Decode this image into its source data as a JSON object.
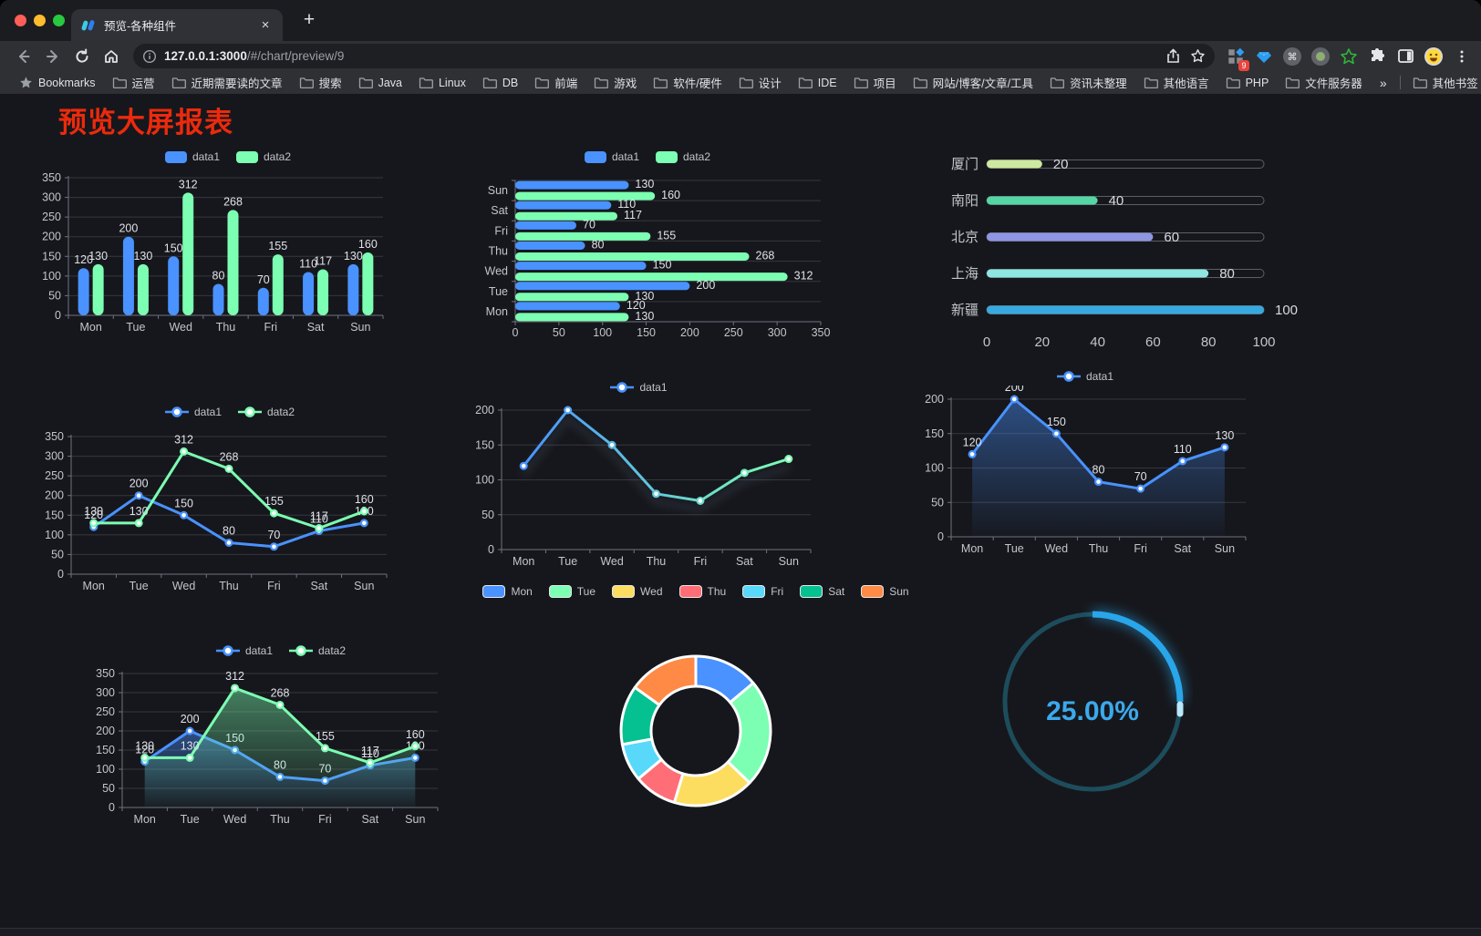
{
  "browser": {
    "tab_title": "预览-各种组件",
    "url_host": "127.0.0.1:3000",
    "url_path": "/#/chart/preview/9",
    "extension_badge": "9",
    "bookmarks_label": "Bookmarks",
    "bookmarks": [
      "运营",
      "近期需要读的文章",
      "搜索",
      "Java",
      "Linux",
      "DB",
      "前端",
      "游戏",
      "软件/硬件",
      "设计",
      "IDE",
      "项目",
      "网站/博客/文章/工具",
      "资讯未整理",
      "其他语言",
      "PHP",
      "文件服务器"
    ],
    "bookmarks_overflow": "»",
    "other_bookmarks": "其他书签"
  },
  "page": {
    "title": "预览大屏报表",
    "title_color": "#ec2a0d",
    "background": "#16171c"
  },
  "palette": {
    "data1": "#4992ff",
    "data2": "#7cffb2",
    "axis_text": "#c3c5ca",
    "value_label": "#dfe2e8",
    "grid_line": "rgba(255,255,255,0.14)",
    "axis_line": "#6f7280"
  },
  "chart_data": [
    {
      "id": "bar-grouped",
      "type": "bar",
      "categories": [
        "Mon",
        "Tue",
        "Wed",
        "Thu",
        "Fri",
        "Sat",
        "Sun"
      ],
      "series": [
        {
          "name": "data1",
          "color": "#4992ff",
          "values": [
            120,
            200,
            150,
            80,
            70,
            110,
            130
          ]
        },
        {
          "name": "data2",
          "color": "#7cffb2",
          "values": [
            130,
            130,
            312,
            268,
            155,
            117,
            160
          ]
        }
      ],
      "ylim": [
        0,
        350
      ],
      "ytick_step": 50,
      "legend_position": "top",
      "show_labels": true
    },
    {
      "id": "bar-horizontal",
      "type": "bar",
      "orientation": "horizontal",
      "categories": [
        "Mon",
        "Tue",
        "Wed",
        "Thu",
        "Fri",
        "Sat",
        "Sun"
      ],
      "categories_display_top_to_bottom": [
        "Sun",
        "Sat",
        "Fri",
        "Thu",
        "Wed",
        "Tue",
        "Mon"
      ],
      "series": [
        {
          "name": "data1",
          "color": "#4992ff",
          "values": [
            120,
            200,
            150,
            80,
            70,
            110,
            130
          ]
        },
        {
          "name": "data2",
          "color": "#7cffb2",
          "values": [
            130,
            130,
            312,
            268,
            155,
            117,
            160
          ]
        }
      ],
      "xlim": [
        0,
        350
      ],
      "xtick_step": 50,
      "legend_position": "top",
      "show_labels": true
    },
    {
      "id": "progress-list",
      "type": "bar",
      "orientation": "horizontal-progress",
      "items": [
        {
          "label": "厦门",
          "value": 20,
          "color": "#cde9a0"
        },
        {
          "label": "南阳",
          "value": 40,
          "color": "#56d6a4"
        },
        {
          "label": "北京",
          "value": 60,
          "color": "#8e96e2"
        },
        {
          "label": "上海",
          "value": 80,
          "color": "#8fe6e0"
        },
        {
          "label": "新疆",
          "value": 100,
          "color": "#38a9de"
        }
      ],
      "xlim": [
        0,
        100
      ],
      "xticks": [
        0,
        20,
        40,
        60,
        80,
        100
      ]
    },
    {
      "id": "line-two-series",
      "type": "line",
      "categories": [
        "Mon",
        "Tue",
        "Wed",
        "Thu",
        "Fri",
        "Sat",
        "Sun"
      ],
      "series": [
        {
          "name": "data1",
          "color": "#4992ff",
          "values": [
            120,
            200,
            150,
            80,
            70,
            110,
            130
          ]
        },
        {
          "name": "data2",
          "color": "#7cffb2",
          "values": [
            130,
            130,
            312,
            268,
            155,
            117,
            160
          ]
        }
      ],
      "ylim": [
        0,
        350
      ],
      "ytick_step": 50,
      "legend_position": "top",
      "show_labels": true
    },
    {
      "id": "line-gradient-shadow",
      "type": "line",
      "categories": [
        "Mon",
        "Tue",
        "Wed",
        "Thu",
        "Fri",
        "Sat",
        "Sun"
      ],
      "series": [
        {
          "name": "data1",
          "color_start": "#4992ff",
          "color_end": "#7cffb2",
          "values": [
            120,
            200,
            150,
            80,
            70,
            110,
            130
          ]
        }
      ],
      "ylim": [
        0,
        200
      ],
      "ytick_step": 50,
      "legend_position": "top",
      "show_labels": false,
      "shadow": true
    },
    {
      "id": "line-area-single",
      "type": "area",
      "categories": [
        "Mon",
        "Tue",
        "Wed",
        "Thu",
        "Fri",
        "Sat",
        "Sun"
      ],
      "series": [
        {
          "name": "data1",
          "color": "#4992ff",
          "values": [
            120,
            200,
            150,
            80,
            70,
            110,
            130
          ],
          "area": true
        }
      ],
      "ylim": [
        0,
        200
      ],
      "ytick_step": 50,
      "legend_position": "top",
      "show_labels": true
    },
    {
      "id": "line-area-double",
      "type": "area",
      "categories": [
        "Mon",
        "Tue",
        "Wed",
        "Thu",
        "Fri",
        "Sat",
        "Sun"
      ],
      "series": [
        {
          "name": "data1",
          "color": "#4992ff",
          "values": [
            120,
            200,
            150,
            80,
            70,
            110,
            130
          ],
          "area": true
        },
        {
          "name": "data2",
          "color": "#7cffb2",
          "values": [
            130,
            130,
            312,
            268,
            155,
            117,
            160
          ],
          "area": true
        }
      ],
      "ylim": [
        0,
        350
      ],
      "ytick_step": 50,
      "legend_position": "top",
      "show_labels": true
    },
    {
      "id": "donut",
      "type": "pie",
      "donut": true,
      "legend_position": "top",
      "items": [
        {
          "label": "Mon",
          "value": 120,
          "color": "#4992ff"
        },
        {
          "label": "Tue",
          "value": 200,
          "color": "#7cffb2"
        },
        {
          "label": "Wed",
          "value": 150,
          "color": "#fddd60"
        },
        {
          "label": "Thu",
          "value": 80,
          "color": "#ff6e76"
        },
        {
          "label": "Fri",
          "value": 70,
          "color": "#58d9f9"
        },
        {
          "label": "Sat",
          "value": 110,
          "color": "#05c091"
        },
        {
          "label": "Sun",
          "value": 130,
          "color": "#ff8a45"
        }
      ]
    },
    {
      "id": "gauge-ring",
      "type": "gauge",
      "value": 25,
      "label": "25.00%",
      "color": "#29a5e9",
      "track_color": "#1d4d5c",
      "cap_color": "#b9e7fb",
      "text_color": "#3ba9ec"
    }
  ]
}
